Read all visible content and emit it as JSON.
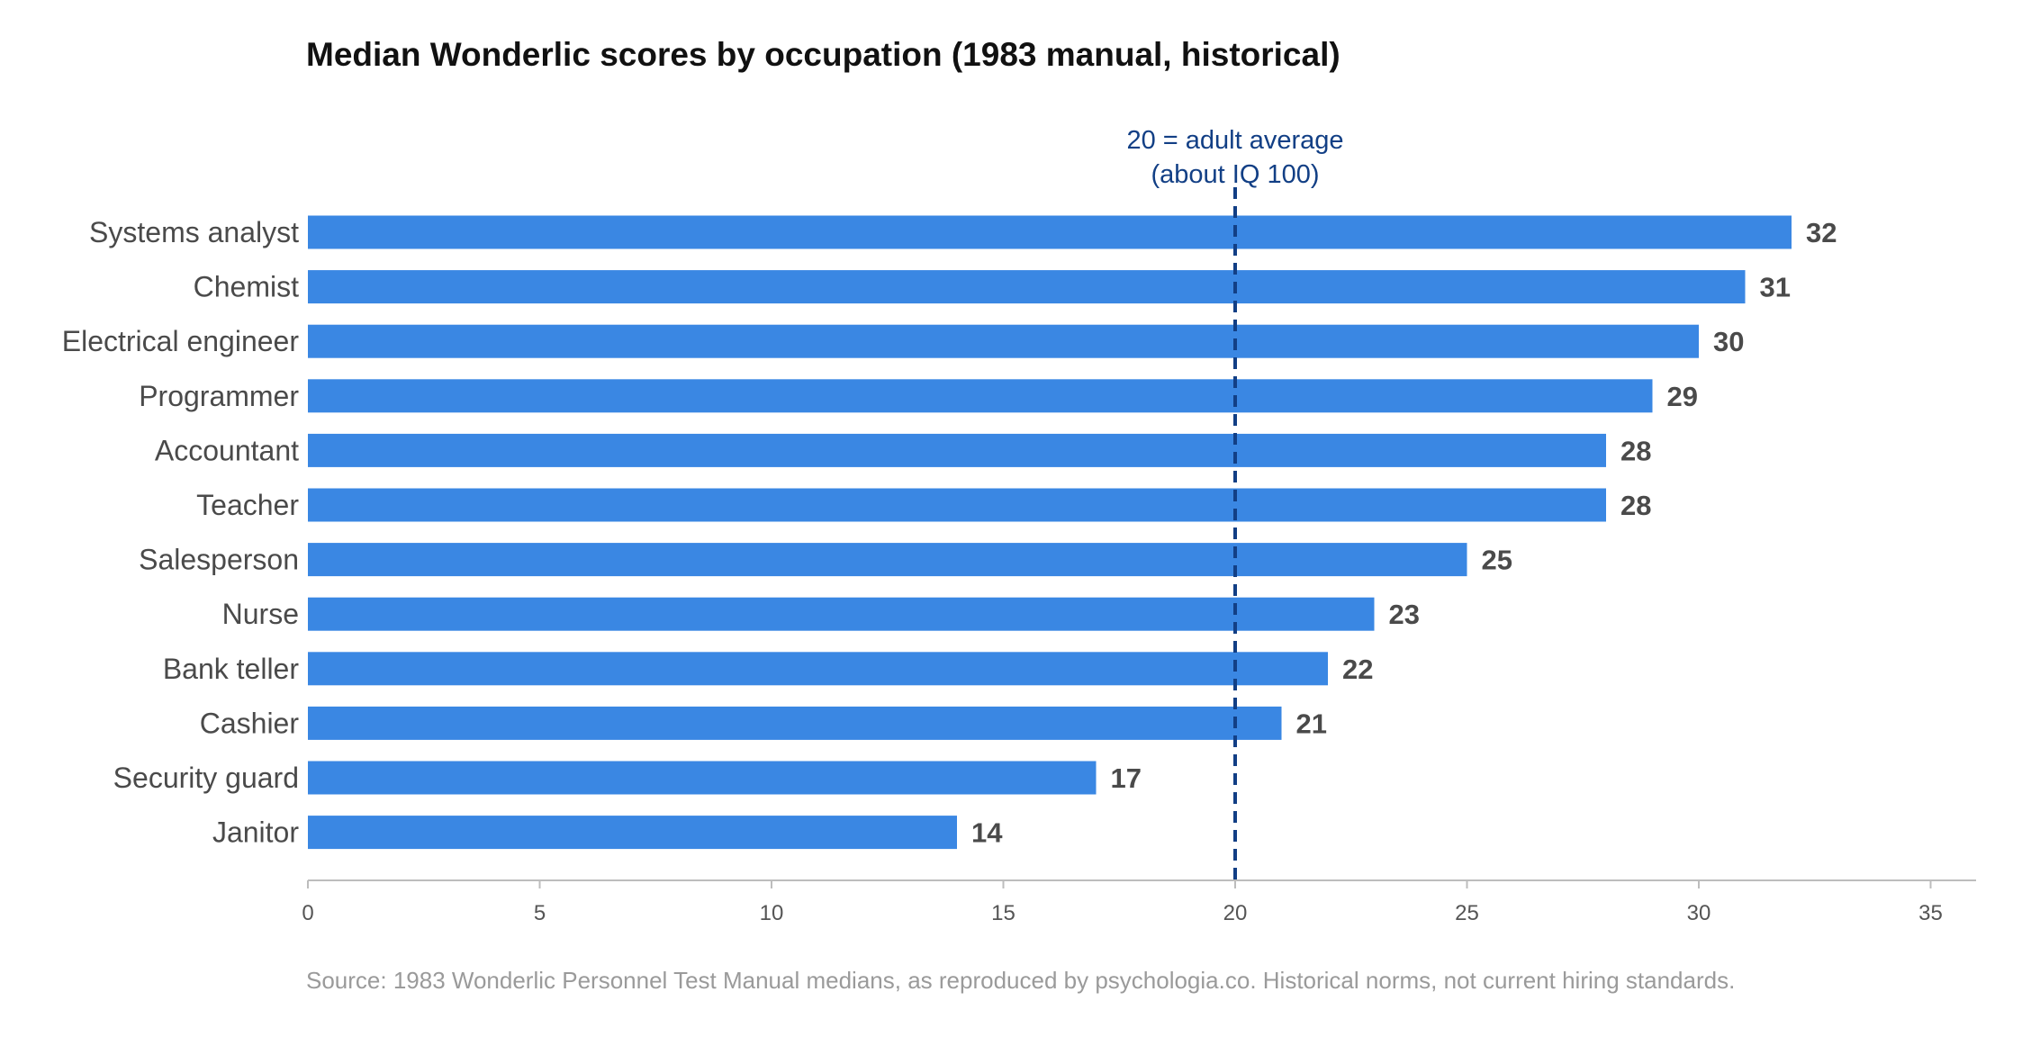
{
  "chart_data": {
    "type": "bar",
    "orientation": "horizontal",
    "title": "Median Wonderlic scores by occupation (1983 manual, historical)",
    "categories": [
      "Systems analyst",
      "Chemist",
      "Electrical engineer",
      "Programmer",
      "Accountant",
      "Teacher",
      "Salesperson",
      "Nurse",
      "Bank teller",
      "Cashier",
      "Security guard",
      "Janitor"
    ],
    "values": [
      32,
      31,
      30,
      29,
      28,
      28,
      25,
      23,
      22,
      21,
      17,
      14
    ],
    "xlim": [
      0,
      36
    ],
    "x_ticks": [
      "0",
      "5",
      "10",
      "15",
      "20",
      "25",
      "30",
      "35"
    ],
    "xlabel": "",
    "ylabel": "",
    "grid": false,
    "data_labels": true,
    "reference_line": {
      "value": 20,
      "style": "dashed",
      "label_lines": [
        "20 = adult average",
        "(about IQ 100)"
      ]
    },
    "source": "Source: 1983 Wonderlic Personnel Test Manual medians, as reproduced by psychologia.co. Historical norms, not current hiring standards.",
    "colors": {
      "bar": "#3a87e3",
      "reference_line": "#123f85",
      "category_label": "#4a4a4a",
      "value_label": "#4a4a4a",
      "axis": "#bdbdbd",
      "tick_label": "#555555",
      "source": "#9a9a9a",
      "title": "#111111"
    }
  }
}
